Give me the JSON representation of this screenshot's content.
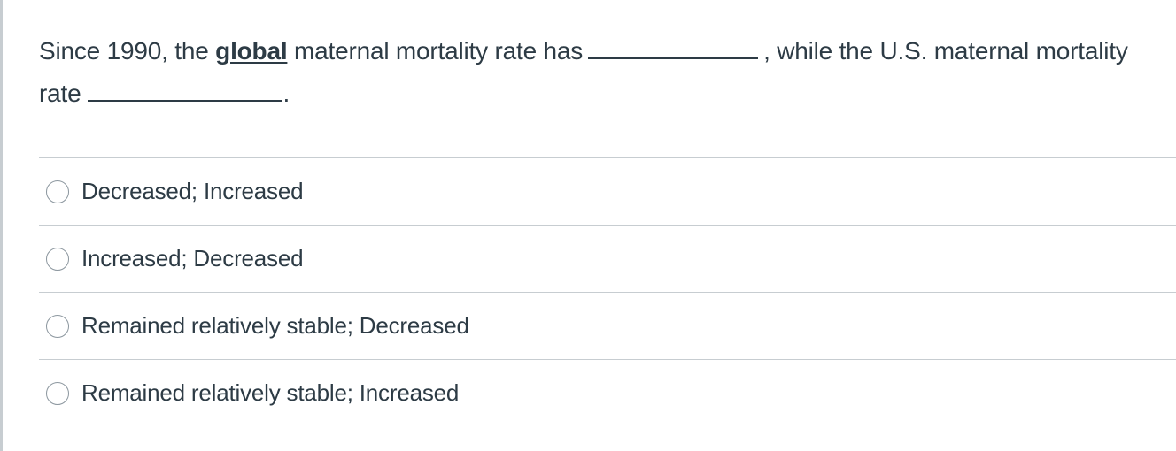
{
  "question": {
    "part1": "Since 1990, the ",
    "emphasis": "global",
    "part2": " maternal mortality rate has",
    "part3": ", while the U.S. maternal mortality rate",
    "part4": "."
  },
  "answers": [
    {
      "label": "Decreased; Increased",
      "selected": false
    },
    {
      "label": "Increased; Decreased",
      "selected": false
    },
    {
      "label": "Remained relatively stable; Decreased",
      "selected": false
    },
    {
      "label": "Remained relatively stable; Increased",
      "selected": false
    }
  ],
  "colors": {
    "text": "#2d3b45",
    "divider": "#c7cdd1",
    "radio_border": "#8b969e"
  }
}
